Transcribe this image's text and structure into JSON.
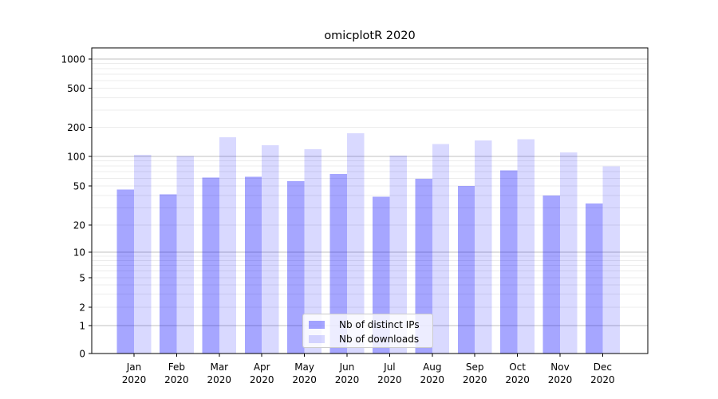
{
  "figure": {
    "background": "#ffffff",
    "axis_color": "#000000",
    "text_color": "#000000"
  },
  "chart_data": {
    "type": "bar",
    "title": "omicplotR 2020",
    "year": "2020",
    "months": [
      "Jan",
      "Feb",
      "Mar",
      "Apr",
      "May",
      "Jun",
      "Jul",
      "Aug",
      "Sep",
      "Oct",
      "Nov",
      "Dec"
    ],
    "categories": [
      "Jan 2020",
      "Feb 2020",
      "Mar 2020",
      "Apr 2020",
      "May 2020",
      "Jun 2020",
      "Jul 2020",
      "Aug 2020",
      "Sep 2020",
      "Oct 2020",
      "Nov 2020",
      "Dec 2020"
    ],
    "series": [
      {
        "name": "Nb of distinct IPs",
        "color": "rgba(0,0,255,0.35)",
        "color_on_white_hex": "#a6a6ff",
        "values": [
          46,
          41,
          61,
          62,
          56,
          66,
          39,
          59,
          50,
          72,
          40,
          33
        ]
      },
      {
        "name": "Nb of downloads",
        "color": "rgba(0,0,255,0.15)",
        "color_on_white_hex": "#d9d9ff",
        "values": [
          104,
          101,
          158,
          130,
          119,
          173,
          102,
          134,
          146,
          151,
          110,
          79
        ]
      }
    ],
    "xlabel": "",
    "ylabel": "",
    "y_scale": "symlog",
    "y_ticks": [
      0,
      1,
      2,
      5,
      10,
      20,
      50,
      100,
      200,
      500,
      1000
    ],
    "ylim": [
      0,
      1300
    ],
    "grid": {
      "enabled": true,
      "major_values": [
        1,
        10,
        100,
        1000
      ],
      "minor_values": [
        2,
        3,
        4,
        5,
        6,
        7,
        8,
        9,
        20,
        30,
        40,
        50,
        60,
        70,
        80,
        90,
        200,
        300,
        400,
        500,
        600,
        700,
        800,
        900
      ],
      "major_color": "#c0c0c0",
      "minor_color": "#ececec"
    },
    "legend_position": "lower center inside"
  },
  "legend": {
    "items": [
      {
        "label": "Nb of distinct IPs",
        "color": "rgba(0,0,255,0.35)"
      },
      {
        "label": "Nb of downloads",
        "color": "rgba(0,0,255,0.15)"
      }
    ]
  }
}
